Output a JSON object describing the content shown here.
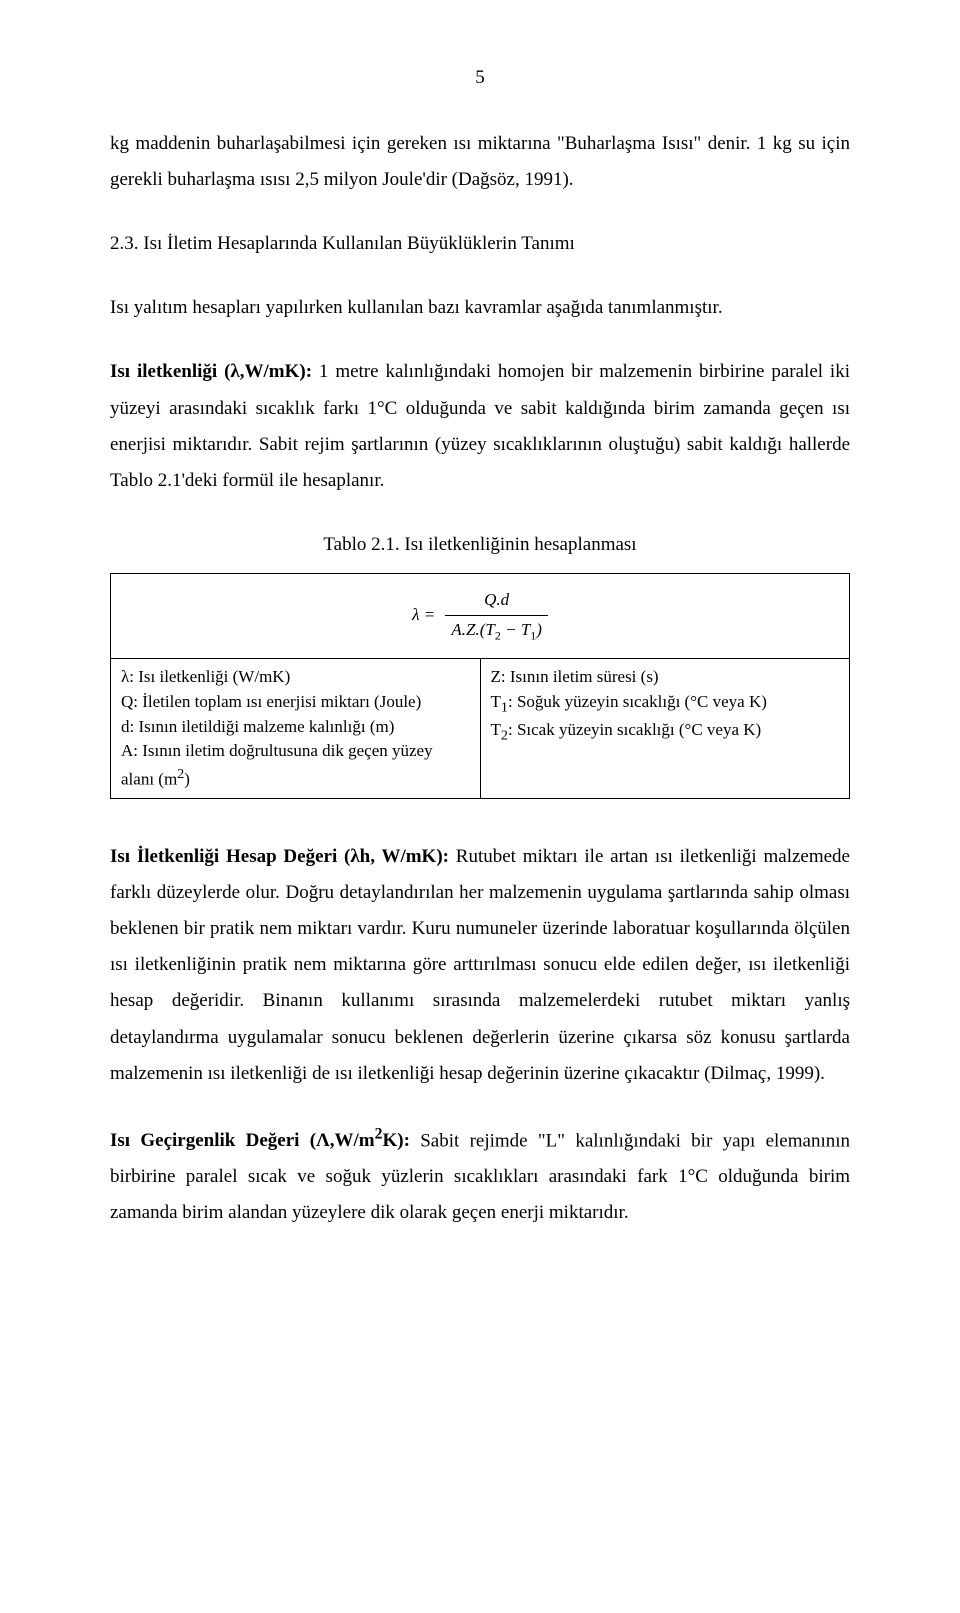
{
  "page_number": "5",
  "p1": "kg maddenin buharlaşabilmesi için gereken ısı miktarına \"Buharlaşma Isısı\" denir. 1 kg su için gerekli buharlaşma ısısı 2,5 milyon Joule'dir (Dağsöz, 1991).",
  "h1": "2.3. Isı İletim Hesaplarında Kullanılan Büyüklüklerin Tanımı",
  "p2": "Isı yalıtım hesapları yapılırken kullanılan bazı kavramlar aşağıda tanımlanmıştır.",
  "p3_label": "Isı iletkenliği (λ,W/mK):",
  "p3_text": " 1 metre kalınlığındaki homojen bir malzemenin birbirine paralel iki yüzeyi arasındaki sıcaklık farkı 1°C olduğunda ve sabit kaldığında birim zamanda geçen ısı enerjisi miktarıdır. Sabit rejim şartlarının (yüzey sıcaklıklarının oluştuğu) sabit kaldığı hallerde Tablo 2.1'deki formül ile hesaplanır.",
  "table_caption": "Tablo 2.1. Isı iletkenliğinin hesaplanması",
  "formula": {
    "lhs": "λ =",
    "num": "Q.d",
    "den_prefix": "A.Z.(T",
    "den_sub1": "2",
    "den_mid": " − T",
    "den_sub2": "1",
    "den_suffix": ")"
  },
  "legend_left_1": "λ: Isı iletkenliği (W/mK)",
  "legend_left_2": "Q: İletilen toplam ısı enerjisi miktarı (Joule)",
  "legend_left_3": "d: Isının iletildiği malzeme kalınlığı (m)",
  "legend_left_4_a": "A: Isının iletim doğrultusuna dik geçen yüzey alanı (m",
  "legend_left_4_sup": "2",
  "legend_left_4_b": ")",
  "legend_right_1": "Z: Isının iletim süresi (s)",
  "legend_right_2a": "T",
  "legend_right_2s": "1",
  "legend_right_2b": ": Soğuk yüzeyin sıcaklığı (°C veya K)",
  "legend_right_3a": "T",
  "legend_right_3s": "2",
  "legend_right_3b": ": Sıcak yüzeyin sıcaklığı (°C veya K)",
  "p4_label": "Isı İletkenliği Hesap Değeri (λh, W/mK):",
  "p4_text": " Rutubet miktarı ile artan ısı iletkenliği malzemede farklı düzeylerde olur. Doğru detaylandırılan her malzemenin uygulama şartlarında sahip olması beklenen bir pratik nem miktarı vardır. Kuru numuneler üzerinde laboratuar koşullarında ölçülen ısı iletkenliğinin pratik nem miktarına göre arttırılması sonucu elde edilen değer, ısı iletkenliği hesap değeridir. Binanın kullanımı sırasında malzemelerdeki rutubet miktarı yanlış detaylandırma uygulamalar sonucu beklenen değerlerin üzerine çıkarsa söz konusu şartlarda malzemenin ısı iletkenliği de ısı iletkenliği hesap değerinin üzerine çıkacaktır (Dilmaç, 1999).",
  "p5_label_a": "Isı Geçirgenlik Değeri (Λ,W/m",
  "p5_label_sup": "2",
  "p5_label_b": "K):",
  "p5_text": " Sabit rejimde \"L\" kalınlığındaki bir yapı elemanının birbirine paralel sıcak ve soğuk yüzlerin sıcaklıkları arasındaki fark 1°C olduğunda birim zamanda birim alandan yüzeylere dik olarak geçen enerji miktarıdır."
}
